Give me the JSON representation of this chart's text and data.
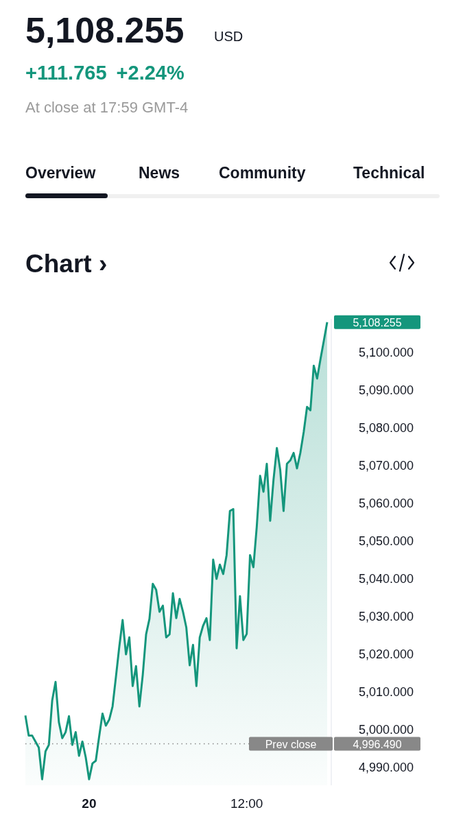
{
  "chart_data": {
    "type": "area",
    "title": "5,108.255",
    "subtitle": "+111.765 +2.24%",
    "annotations": [
      "USD",
      "At close at 17:59 GMT-4",
      "Overview",
      "News",
      "Community",
      "Technical",
      "Chart ›",
      "5,108.255",
      "4,996.490"
    ],
    "categories": [
      null,
      null,
      null,
      null,
      null,
      null,
      null,
      null,
      null,
      null,
      null,
      null,
      null,
      null,
      null,
      null,
      null,
      null,
      null,
      "20",
      null,
      null,
      null,
      null,
      null,
      null,
      null,
      null,
      null,
      null,
      null,
      null,
      null,
      null,
      null,
      null,
      null,
      null,
      null,
      null,
      null,
      null,
      null,
      null,
      null,
      null,
      null,
      null,
      null,
      null,
      null,
      null,
      null,
      null,
      null,
      null,
      null,
      null,
      null,
      null,
      null,
      null,
      null,
      null,
      null,
      null,
      "12:00",
      null,
      null,
      null,
      null,
      null,
      null,
      null,
      null,
      null,
      null,
      null,
      null,
      null,
      null,
      null,
      null,
      null,
      null,
      null,
      null,
      null,
      null,
      null,
      null
    ],
    "series": [
      {
        "color": "#14967c",
        "values": [
          5004.0,
          4998.7,
          4998.7,
          4997.1,
          4995.5,
          4987.1,
          4994.5,
          4996.2,
          5008.0,
          5012.9,
          5002.2,
          4998.0,
          4999.6,
          5003.8,
          4996.2,
          4999.6,
          4993.3,
          4997.1,
          4992.9,
          4987.1,
          4991.3,
          4992.0,
          4998.4,
          5004.5,
          5001.3,
          5002.9,
          5006.4,
          5014.2,
          5022.2,
          5029.3,
          5020.2,
          5024.7,
          5011.8,
          5017.1,
          5006.4,
          5014.7,
          5025.5,
          5029.6,
          5038.9,
          5037.3,
          5031.5,
          5033.1,
          5024.7,
          5025.5,
          5036.4,
          5029.8,
          5034.9,
          5031.5,
          5027.3,
          5017.3,
          5022.7,
          5011.8,
          5024.7,
          5027.8,
          5029.8,
          5024.0,
          5045.3,
          5040.2,
          5044.0,
          5041.5,
          5046.5,
          5058.2,
          5058.7,
          5021.8,
          5035.6,
          5024.0,
          5025.6,
          5046.5,
          5043.3,
          5054.0,
          5067.5,
          5063.3,
          5070.7,
          5055.6,
          5066.5,
          5074.9,
          5069.1,
          5058.2,
          5070.7,
          5071.6,
          5073.6,
          5069.5,
          5073.6,
          5079.1,
          5085.8,
          5084.9,
          5096.7,
          5093.3,
          5098.4,
          5103.3,
          5108.255
        ]
      }
    ],
    "ylim": [
      4985.5,
      5109.1
    ],
    "yticks": [
      {
        "value": 4990,
        "label": "4,990.000"
      },
      {
        "value": 5000,
        "label": "5,000.000"
      },
      {
        "value": 5010,
        "label": "5,010.000"
      },
      {
        "value": 5020,
        "label": "5,020.000"
      },
      {
        "value": 5030,
        "label": "5,030.000"
      },
      {
        "value": 5040,
        "label": "5,040.000"
      },
      {
        "value": 5050,
        "label": "5,050.000"
      },
      {
        "value": 5060,
        "label": "5,060.000"
      },
      {
        "value": 5070,
        "label": "5,070.000"
      },
      {
        "value": 5080,
        "label": "5,080.000"
      },
      {
        "value": 5090,
        "label": "5,090.000"
      },
      {
        "value": 5100,
        "label": "5,100.000"
      }
    ],
    "ref_lines": [
      {
        "axis": "y",
        "value": 4996.49,
        "label": "Prev close",
        "color": "#888888",
        "line_style": "dotted"
      }
    ],
    "grid": false
  }
}
